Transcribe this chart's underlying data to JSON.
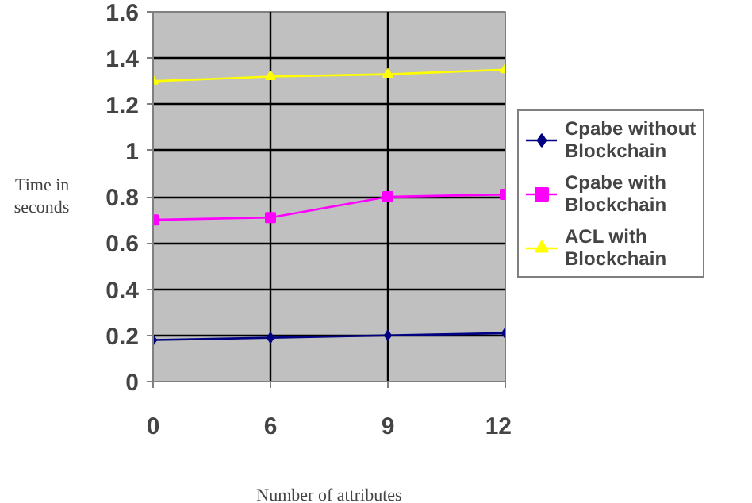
{
  "chart_data": {
    "type": "line",
    "xlabel": "Number of attributes",
    "ylabel": "Time in seconds",
    "categories": [
      "0",
      "6",
      "9",
      "12"
    ],
    "ylim": [
      0,
      1.6
    ],
    "yticks": [
      0,
      0.2,
      0.4,
      0.6,
      0.8,
      1,
      1.2,
      1.4,
      1.6
    ],
    "grid": true,
    "legend": "right",
    "series": [
      {
        "name": "Cpabe without Blockchain",
        "color": "#000080",
        "marker": "diamond",
        "values": [
          0.18,
          0.19,
          0.2,
          0.21
        ]
      },
      {
        "name": "Cpabe with Blockchain",
        "color": "#ff00ff",
        "marker": "square",
        "values": [
          0.7,
          0.71,
          0.8,
          0.81
        ]
      },
      {
        "name": "ACL with Blockchain",
        "color": "#ffff00",
        "marker": "triangle",
        "values": [
          1.3,
          1.32,
          1.33,
          1.35
        ]
      }
    ]
  }
}
